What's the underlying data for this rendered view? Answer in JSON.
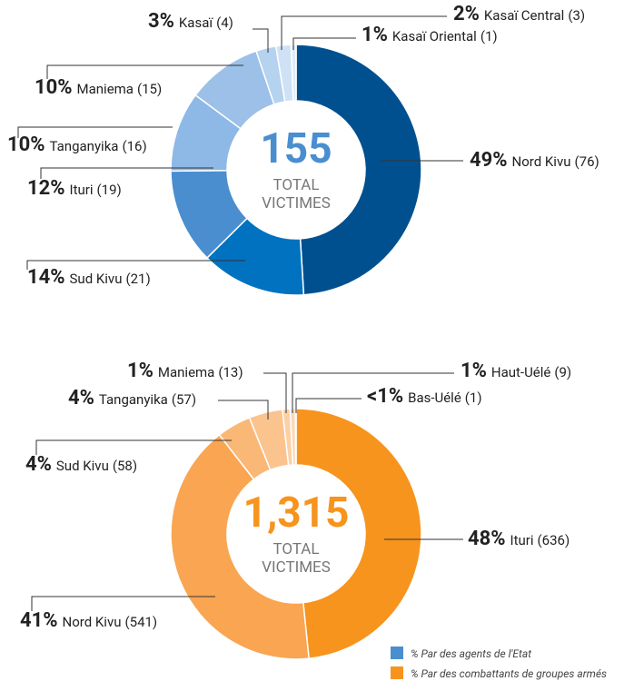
{
  "chart_data": [
    {
      "type": "pie",
      "categories": [
        "Nord Kivu",
        "Sud Kivu",
        "Ituri",
        "Tanganyika",
        "Maniema",
        "Kasaï",
        "Kasaï Central",
        "Kasaï Oriental"
      ],
      "values": [
        76,
        21,
        19,
        16,
        15,
        4,
        3,
        1
      ],
      "value_labels": [
        "(76)",
        "(21)",
        "(19)",
        "(16)",
        "(15)",
        "(4)",
        "(3)",
        "(1)"
      ],
      "percent_labels": [
        "49%",
        "14%",
        "12%",
        "10%",
        "10%",
        "3%",
        "2%",
        "1%"
      ],
      "colors": [
        "#00508f",
        "#0072c0",
        "#4a8ed0",
        "#8eb9e6",
        "#9cc0e8",
        "#b5d2ef",
        "#cfe2f5",
        "#deecf8"
      ],
      "total": 155,
      "total_color": "#4a8ed0",
      "center_text": [
        "TOTAL",
        "VICTIMES"
      ]
    },
    {
      "type": "pie",
      "categories": [
        "Ituri",
        "Nord Kivu",
        "Sud Kivu",
        "Tanganyika",
        "Maniema",
        "Haut-Uélé",
        "Bas-Uélé"
      ],
      "values": [
        636,
        541,
        58,
        57,
        13,
        9,
        1
      ],
      "value_labels": [
        "(636)",
        "(541)",
        "(58)",
        "(57)",
        "(13)",
        "(9)",
        "(1)"
      ],
      "percent_labels": [
        "48%",
        "41%",
        "4%",
        "4%",
        "1%",
        "1%",
        "<1%"
      ],
      "colors": [
        "#f7941d",
        "#f9a552",
        "#fab877",
        "#fbc38e",
        "#fcd0a5",
        "#fdd9b5",
        "#fde5cc"
      ],
      "total": {
        "value": 1315,
        "label": "1,315"
      },
      "total_color": "#f7941d",
      "center_text": [
        "TOTAL",
        "VICTIMES"
      ]
    }
  ],
  "legend": [
    {
      "name": "% Par des agents de l'Etat",
      "color": "#4a8ed0"
    },
    {
      "name": "% Par des combattants de groupes armés",
      "color": "#f7941d"
    }
  ]
}
